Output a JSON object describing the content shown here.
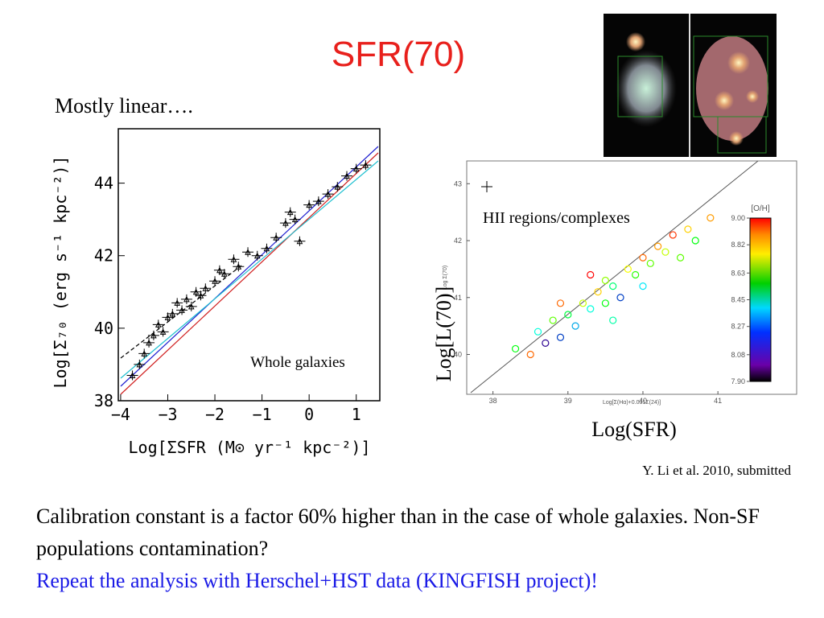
{
  "title": "SFR(70)",
  "note": "Mostly linear….",
  "charts": [
    {
      "type": "scatter",
      "xlabel": "Log[ΣSFR (M⊙ yr⁻¹ kpc⁻²)]",
      "ylabel": "Log[Σ₇₀ (erg s⁻¹ kpc⁻²)]",
      "annotation": "Whole galaxies",
      "xlim": [
        -4.05,
        1.5
      ],
      "ylim": [
        38,
        45.5
      ],
      "xticks": [
        {
          "value": -4,
          "label": "−4"
        },
        {
          "value": -3,
          "label": "−3"
        },
        {
          "value": -2,
          "label": "−2"
        },
        {
          "value": -1,
          "label": "−1"
        },
        0,
        1
      ],
      "yticks": [
        38,
        40,
        42,
        44
      ],
      "x": [
        -3.75,
        -3.6,
        -3.5,
        -3.4,
        -3.3,
        -3.2,
        -3.1,
        -3.0,
        -2.9,
        -2.8,
        -2.7,
        -2.6,
        -2.5,
        -2.4,
        -2.3,
        -2.2,
        -2.0,
        -1.9,
        -1.8,
        -1.6,
        -1.5,
        -1.3,
        -1.1,
        -0.9,
        -0.7,
        -0.5,
        -0.4,
        -0.3,
        -0.2,
        0.0,
        0.2,
        0.4,
        0.6,
        0.8,
        1.0,
        1.2
      ],
      "y": [
        38.7,
        39.0,
        39.3,
        39.6,
        39.8,
        40.1,
        39.9,
        40.3,
        40.4,
        40.7,
        40.5,
        40.8,
        40.6,
        41.0,
        40.9,
        41.1,
        41.3,
        41.6,
        41.5,
        41.9,
        41.7,
        42.1,
        42.0,
        42.2,
        42.5,
        42.9,
        43.2,
        43.0,
        42.4,
        43.4,
        43.5,
        43.7,
        43.9,
        44.2,
        44.4,
        44.5
      ]
    },
    {
      "type": "scatter",
      "xlabel": "Log[Σ(Hα)+0.031Σ(24)]",
      "ylabel": "Log Σ(70)",
      "big_xlabel": "Log(SFR)",
      "big_ylabel": "Log[L(70)]",
      "annotation": "HII regions/complexes",
      "colorbar_label": "[O/H]",
      "colorbar_ticks": [
        {
          "value": 9,
          "label": "9.00"
        },
        8.82,
        8.63,
        8.45,
        8.27,
        8.08,
        {
          "value": 7.9,
          "label": "7.90"
        }
      ],
      "xlim": [
        37.65,
        42.05
      ],
      "ylim": [
        39.3,
        43.4
      ],
      "xticks": [
        38,
        39,
        40,
        41
      ],
      "yticks": [
        40,
        41,
        42,
        43
      ],
      "x": [
        38.3,
        38.5,
        38.6,
        38.7,
        38.8,
        38.9,
        39.0,
        39.1,
        39.2,
        39.3,
        39.4,
        39.5,
        39.5,
        39.6,
        39.7,
        39.8,
        39.9,
        40.0,
        40.1,
        40.2,
        40.3,
        40.4,
        40.5,
        40.6,
        40.7,
        40.9,
        39.6,
        39.3,
        38.9,
        40.0
      ],
      "y": [
        40.1,
        40.0,
        40.4,
        40.2,
        40.6,
        40.3,
        40.7,
        40.5,
        40.9,
        40.8,
        41.1,
        40.9,
        41.3,
        41.2,
        41.0,
        41.5,
        41.4,
        41.7,
        41.6,
        41.9,
        41.8,
        42.1,
        41.7,
        42.2,
        42.0,
        42.4,
        40.6,
        41.4,
        40.9,
        41.2
      ],
      "oh": [
        8.5,
        8.9,
        8.3,
        7.95,
        8.6,
        8.1,
        8.45,
        8.2,
        8.7,
        8.3,
        8.8,
        8.5,
        8.65,
        8.4,
        8.1,
        8.75,
        8.55,
        8.9,
        8.6,
        8.85,
        8.7,
        8.95,
        8.6,
        8.8,
        8.5,
        8.85,
        8.35,
        9.0,
        8.9,
        8.25
      ]
    }
  ],
  "citation": "Y. Li et al. 2010, submitted",
  "body": [
    "Calibration constant is a factor 60% higher than in the case of whole galaxies. Non-SF populations contamination?",
    "Repeat the analysis with Herschel+HST  data (KINGFISH project)!"
  ]
}
